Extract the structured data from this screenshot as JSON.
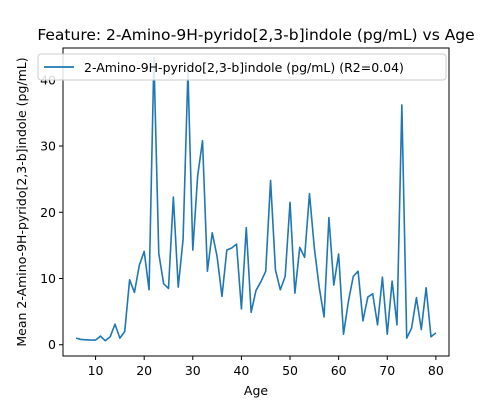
{
  "chart_data": {
    "type": "line",
    "title": "Feature: 2-Amino-9H-pyrido[2,3-b]indole (pg/mL) vs Age",
    "xlabel": "Age",
    "ylabel": "Mean 2-Amino-9H-pyrido[2,3-b]indole (pg/mL)",
    "xlim": [
      3.3,
      82.7
    ],
    "ylim": [
      -1.7,
      44.8
    ],
    "xticks": [
      10,
      20,
      30,
      40,
      50,
      60,
      70,
      80
    ],
    "yticks": [
      0,
      10,
      20,
      30,
      40
    ],
    "grid": false,
    "legend_position": "top",
    "line_color": "#1f77b4",
    "series": [
      {
        "name": "2-Amino-9H-pyrido[2,3-b]indole (pg/mL) (R2=0.04)",
        "x": [
          6,
          7,
          8,
          9,
          10,
          11,
          12,
          13,
          14,
          15,
          16,
          17,
          18,
          19,
          20,
          21,
          22,
          23,
          24,
          25,
          26,
          27,
          28,
          29,
          30,
          31,
          32,
          33,
          34,
          35,
          36,
          37,
          38,
          39,
          40,
          41,
          42,
          43,
          44,
          45,
          46,
          47,
          48,
          49,
          50,
          51,
          52,
          53,
          54,
          55,
          56,
          57,
          58,
          59,
          60,
          61,
          62,
          63,
          64,
          65,
          66,
          67,
          68,
          69,
          70,
          71,
          72,
          73,
          74,
          75,
          76,
          77,
          78,
          79,
          80
        ],
        "y": [
          1.0,
          0.8,
          0.75,
          0.7,
          0.7,
          1.3,
          0.6,
          1.2,
          3.1,
          1.0,
          2.0,
          9.8,
          7.9,
          12.0,
          14.1,
          8.3,
          43.3,
          13.8,
          9.2,
          8.5,
          22.3,
          8.7,
          15.9,
          41.3,
          14.3,
          25.5,
          30.8,
          11.1,
          16.9,
          13.3,
          7.3,
          14.3,
          14.6,
          15.2,
          5.4,
          17.7,
          4.9,
          8.2,
          9.5,
          11.1,
          24.8,
          11.3,
          8.3,
          10.3,
          21.5,
          7.8,
          14.7,
          13.2,
          22.8,
          14.6,
          8.7,
          4.2,
          19.2,
          9.0,
          13.7,
          1.6,
          6.5,
          10.3,
          11.1,
          3.6,
          7.2,
          7.7,
          3.0,
          10.2,
          1.6,
          9.6,
          3.0,
          36.2,
          1.0,
          2.5,
          7.1,
          2.3,
          8.6,
          1.2,
          1.8
        ]
      }
    ]
  }
}
